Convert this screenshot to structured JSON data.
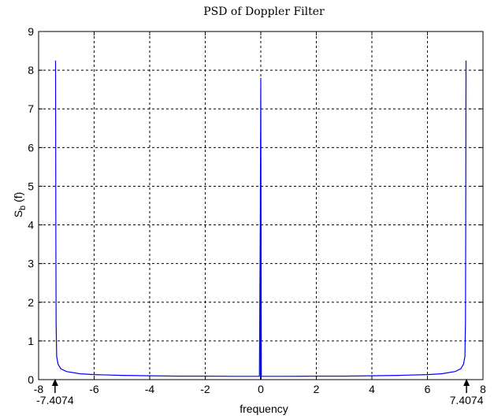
{
  "chart_data": {
    "type": "line",
    "title": "PSD of Doppler Filter",
    "xlabel": "frequency",
    "ylabel": "S_b (f)",
    "ylabel_main": "S",
    "ylabel_sub": "b",
    "ylabel_tail": " (f)",
    "xlim": [
      -8,
      8
    ],
    "ylim": [
      0,
      9
    ],
    "xticks": [
      -8,
      -6,
      -4,
      -2,
      0,
      2,
      4,
      6,
      8
    ],
    "yticks": [
      0,
      1,
      2,
      3,
      4,
      5,
      6,
      7,
      8,
      9
    ],
    "grid": true,
    "line_color": "#0000ff",
    "fd": 7.4074,
    "series": [
      {
        "x": [
          -7.39,
          -7.38,
          -7.37,
          -7.35,
          -7.3,
          -7.2,
          -7.0,
          -6.5,
          -6.0,
          -5.0,
          -4.0,
          -3.0,
          -2.0,
          -1.0,
          -0.05,
          -0.02,
          0.0,
          0.02,
          0.05,
          1.0,
          2.0,
          3.0,
          4.0,
          5.0,
          6.0,
          6.5,
          7.0,
          7.2,
          7.3,
          7.35,
          7.37,
          7.38,
          7.39
        ],
        "y": [
          8.25,
          4.0,
          1.5,
          0.6,
          0.4,
          0.28,
          0.21,
          0.15,
          0.13,
          0.11,
          0.1,
          0.09,
          0.09,
          0.085,
          0.085,
          3.9,
          7.8,
          0.085,
          0.085,
          0.085,
          0.09,
          0.09,
          0.1,
          0.11,
          0.13,
          0.15,
          0.21,
          0.28,
          0.4,
          0.6,
          1.5,
          4.0,
          8.25
        ]
      }
    ],
    "annotations": [
      {
        "x": -7.4074,
        "label": "-7.4074"
      },
      {
        "x": 7.4074,
        "label": "7.4074"
      }
    ]
  }
}
